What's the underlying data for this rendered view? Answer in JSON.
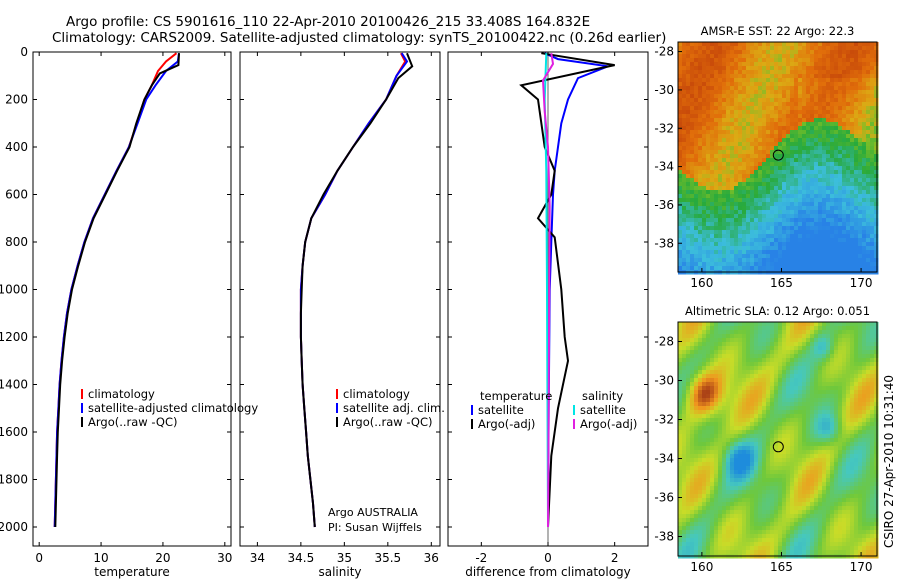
{
  "title_line1": "Argo profile: CS 5901616_110 22-Apr-2010 20100426_215 33.408S 164.832E",
  "title_line2": "Climatology: CARS2009. Satellite-adjusted climatology: synTS_20100422.nc (0.26d earlier)",
  "credit_line1": "Argo AUSTRALIA",
  "credit_line2": "PI: Susan Wijffels",
  "side_stamp": "CSIRO 27-Apr-2010 10:31:40",
  "colors": {
    "climatology": "#ff0000",
    "satellite": "#0000ff",
    "argo": "#000000",
    "sat_salinity": "#00e5e5",
    "argo_salinity": "#e020e0"
  },
  "chart_data": [
    {
      "type": "line",
      "xlabel": "temperature",
      "xlim": [
        -1,
        31
      ],
      "ylim": [
        2080,
        0
      ],
      "xticks": [
        0,
        10,
        20,
        30
      ],
      "yticks": [
        0,
        200,
        400,
        600,
        800,
        1000,
        1200,
        1400,
        1600,
        1800,
        2000
      ],
      "legend": [
        "climatology",
        "satellite-adjusted climatology",
        "Argo(..raw -QC)"
      ],
      "series": [
        {
          "name": "climatology",
          "color": "#ff0000",
          "points": [
            [
              22.2,
              5
            ],
            [
              20.5,
              40
            ],
            [
              19.2,
              80
            ],
            [
              18.2,
              140
            ],
            [
              17,
              200
            ],
            [
              15.8,
              300
            ],
            [
              14.5,
              400
            ],
            [
              12.5,
              500
            ],
            [
              10.6,
              600
            ],
            [
              8.7,
              700
            ],
            [
              7.3,
              800
            ],
            [
              6.2,
              900
            ],
            [
              5.2,
              1000
            ],
            [
              4.5,
              1100
            ],
            [
              4,
              1200
            ],
            [
              3.6,
              1300
            ],
            [
              3.3,
              1400
            ],
            [
              3.1,
              1500
            ],
            [
              2.9,
              1600
            ],
            [
              2.8,
              1700
            ],
            [
              2.7,
              1800
            ],
            [
              2.6,
              1900
            ],
            [
              2.5,
              2000
            ]
          ]
        },
        {
          "name": "satellite-adjusted climatology",
          "color": "#0000ff",
          "points": [
            [
              22.6,
              5
            ],
            [
              22.4,
              40
            ],
            [
              20.5,
              80
            ],
            [
              18.8,
              140
            ],
            [
              17.3,
              200
            ],
            [
              15.9,
              300
            ],
            [
              14.5,
              400
            ],
            [
              12.5,
              500
            ],
            [
              10.6,
              600
            ],
            [
              8.7,
              700
            ],
            [
              7.3,
              800
            ],
            [
              6.2,
              900
            ],
            [
              5.2,
              1000
            ],
            [
              4.5,
              1100
            ],
            [
              4,
              1200
            ],
            [
              3.6,
              1300
            ],
            [
              3.3,
              1400
            ],
            [
              3.1,
              1500
            ],
            [
              2.9,
              1600
            ],
            [
              2.8,
              1700
            ],
            [
              2.7,
              1800
            ],
            [
              2.6,
              1900
            ],
            [
              2.5,
              2000
            ]
          ]
        },
        {
          "name": "Argo(..raw -QC)",
          "color": "#000000",
          "points": [
            [
              22.6,
              5
            ],
            [
              22.5,
              55
            ],
            [
              19.5,
              90
            ],
            [
              18.2,
              140
            ],
            [
              17,
              200
            ],
            [
              15.7,
              300
            ],
            [
              14.6,
              400
            ],
            [
              12.6,
              500
            ],
            [
              10.7,
              600
            ],
            [
              8.8,
              700
            ],
            [
              7.4,
              800
            ],
            [
              6.3,
              900
            ],
            [
              5.3,
              1000
            ],
            [
              4.6,
              1100
            ],
            [
              4.1,
              1200
            ],
            [
              3.7,
              1300
            ],
            [
              3.4,
              1400
            ],
            [
              3.2,
              1500
            ],
            [
              3,
              1600
            ],
            [
              2.9,
              1700
            ],
            [
              2.8,
              1800
            ],
            [
              2.7,
              1900
            ],
            [
              2.6,
              2000
            ]
          ]
        }
      ]
    },
    {
      "type": "line",
      "xlabel": "salinity",
      "xlim": [
        33.8,
        36.1
      ],
      "ylim": [
        2080,
        0
      ],
      "xticks": [
        34,
        34.5,
        35,
        35.5,
        36
      ],
      "yticks": [
        0,
        200,
        400,
        600,
        800,
        1000,
        1200,
        1400,
        1600,
        1800,
        2000
      ],
      "legend": [
        "climatology",
        "satellite adj. clim.",
        "Argo(..raw -QC)"
      ],
      "series": [
        {
          "name": "climatology",
          "color": "#ff0000",
          "points": [
            [
              35.65,
              5
            ],
            [
              35.7,
              40
            ],
            [
              35.6,
              100
            ],
            [
              35.48,
              200
            ],
            [
              35.28,
              300
            ],
            [
              35.1,
              400
            ],
            [
              34.92,
              500
            ],
            [
              34.78,
              600
            ],
            [
              34.62,
              700
            ],
            [
              34.55,
              800
            ],
            [
              34.52,
              900
            ],
            [
              34.5,
              1000
            ],
            [
              34.5,
              1100
            ],
            [
              34.5,
              1200
            ],
            [
              34.51,
              1300
            ],
            [
              34.52,
              1400
            ],
            [
              34.54,
              1500
            ],
            [
              34.56,
              1600
            ],
            [
              34.58,
              1700
            ],
            [
              34.61,
              1800
            ],
            [
              34.64,
              1900
            ],
            [
              34.66,
              2000
            ]
          ]
        },
        {
          "name": "satellite adj. clim.",
          "color": "#0000ff",
          "points": [
            [
              35.66,
              5
            ],
            [
              35.72,
              40
            ],
            [
              35.6,
              100
            ],
            [
              35.48,
              200
            ],
            [
              35.28,
              300
            ],
            [
              35.1,
              400
            ],
            [
              34.92,
              500
            ],
            [
              34.78,
              600
            ],
            [
              34.62,
              700
            ],
            [
              34.55,
              800
            ],
            [
              34.52,
              900
            ],
            [
              34.5,
              1000
            ],
            [
              34.5,
              1100
            ],
            [
              34.5,
              1200
            ],
            [
              34.51,
              1300
            ],
            [
              34.52,
              1400
            ],
            [
              34.54,
              1500
            ],
            [
              34.56,
              1600
            ],
            [
              34.58,
              1700
            ],
            [
              34.61,
              1800
            ],
            [
              34.64,
              1900
            ],
            [
              34.66,
              2000
            ]
          ]
        },
        {
          "name": "Argo(..raw -QC)",
          "color": "#000000",
          "points": [
            [
              35.72,
              5
            ],
            [
              35.78,
              60
            ],
            [
              35.62,
              110
            ],
            [
              35.48,
              200
            ],
            [
              35.3,
              300
            ],
            [
              35.1,
              400
            ],
            [
              34.92,
              500
            ],
            [
              34.76,
              600
            ],
            [
              34.62,
              700
            ],
            [
              34.55,
              800
            ],
            [
              34.52,
              900
            ],
            [
              34.51,
              1000
            ],
            [
              34.5,
              1100
            ],
            [
              34.5,
              1200
            ],
            [
              34.51,
              1300
            ],
            [
              34.52,
              1400
            ],
            [
              34.54,
              1500
            ],
            [
              34.56,
              1600
            ],
            [
              34.58,
              1700
            ],
            [
              34.61,
              1800
            ],
            [
              34.64,
              1900
            ],
            [
              34.66,
              2000
            ]
          ]
        }
      ]
    },
    {
      "type": "line",
      "xlabel": "difference from climatology",
      "xlim": [
        -3,
        3
      ],
      "ylim": [
        2080,
        0
      ],
      "xticks": [
        -2,
        0,
        2
      ],
      "yticks": [
        0,
        200,
        400,
        600,
        800,
        1000,
        1200,
        1400,
        1600,
        1800,
        2000
      ],
      "legend_headers": [
        "temperature",
        "salinity"
      ],
      "legend": [
        "satellite",
        "Argo(-adj)",
        "satellite",
        "Argo(-adj)"
      ],
      "series": [
        {
          "name": "satellite",
          "group": "temperature",
          "color": "#0000ff",
          "points": [
            [
              -0.1,
              5
            ],
            [
              0.3,
              30
            ],
            [
              1.8,
              60
            ],
            [
              0.9,
              110
            ],
            [
              0.6,
              200
            ],
            [
              0.4,
              300
            ],
            [
              0.3,
              400
            ],
            [
              0.2,
              500
            ],
            [
              0.15,
              600
            ],
            [
              0.1,
              800
            ],
            [
              0.05,
              1000
            ],
            [
              0.02,
              1500
            ],
            [
              0,
              2000
            ]
          ]
        },
        {
          "name": "Argo(-adj)",
          "group": "temperature",
          "color": "#000000",
          "points": [
            [
              -0.2,
              5
            ],
            [
              2,
              55
            ],
            [
              1.5,
              70
            ],
            [
              -0.8,
              140
            ],
            [
              -0.3,
              200
            ],
            [
              -0.1,
              400
            ],
            [
              0.2,
              500
            ],
            [
              0.1,
              600
            ],
            [
              -0.3,
              700
            ],
            [
              0.2,
              780
            ],
            [
              0.4,
              1000
            ],
            [
              0.5,
              1200
            ],
            [
              0.6,
              1300
            ],
            [
              0.3,
              1500
            ],
            [
              0.1,
              1700
            ],
            [
              0,
              2000
            ]
          ]
        },
        {
          "name": "satellite",
          "group": "salinity",
          "color": "#00e5e5",
          "points": [
            [
              -0.05,
              5
            ],
            [
              -0.1,
              200
            ],
            [
              -0.05,
              500
            ],
            [
              -0.03,
              1000
            ],
            [
              0,
              2000
            ]
          ]
        },
        {
          "name": "Argo(-adj)",
          "group": "salinity",
          "color": "#e020e0",
          "points": [
            [
              0.1,
              5
            ],
            [
              0.15,
              50
            ],
            [
              -0.15,
              120
            ],
            [
              -0.1,
              250
            ],
            [
              0,
              400
            ],
            [
              0.05,
              650
            ],
            [
              0,
              2000
            ]
          ]
        }
      ]
    }
  ],
  "map_sst": {
    "title": "AMSR-E SST: 22 Argo: 22.3",
    "xticks": [
      160,
      165,
      170
    ],
    "yticks": [
      -28,
      -30,
      -32,
      -34,
      -36,
      -38
    ],
    "xlim": [
      158.5,
      171
    ],
    "ylim": [
      -39.5,
      -27.5
    ],
    "marker": [
      164.8,
      -33.4
    ]
  },
  "map_sla": {
    "title": "Altimetric SLA: 0.12 Argo: 0.051",
    "xticks": [
      160,
      165,
      170
    ],
    "yticks": [
      -28,
      -30,
      -32,
      -34,
      -36,
      -38
    ],
    "xlim": [
      158.5,
      171
    ],
    "ylim": [
      -39,
      -27
    ],
    "marker": [
      164.8,
      -33.4
    ]
  }
}
